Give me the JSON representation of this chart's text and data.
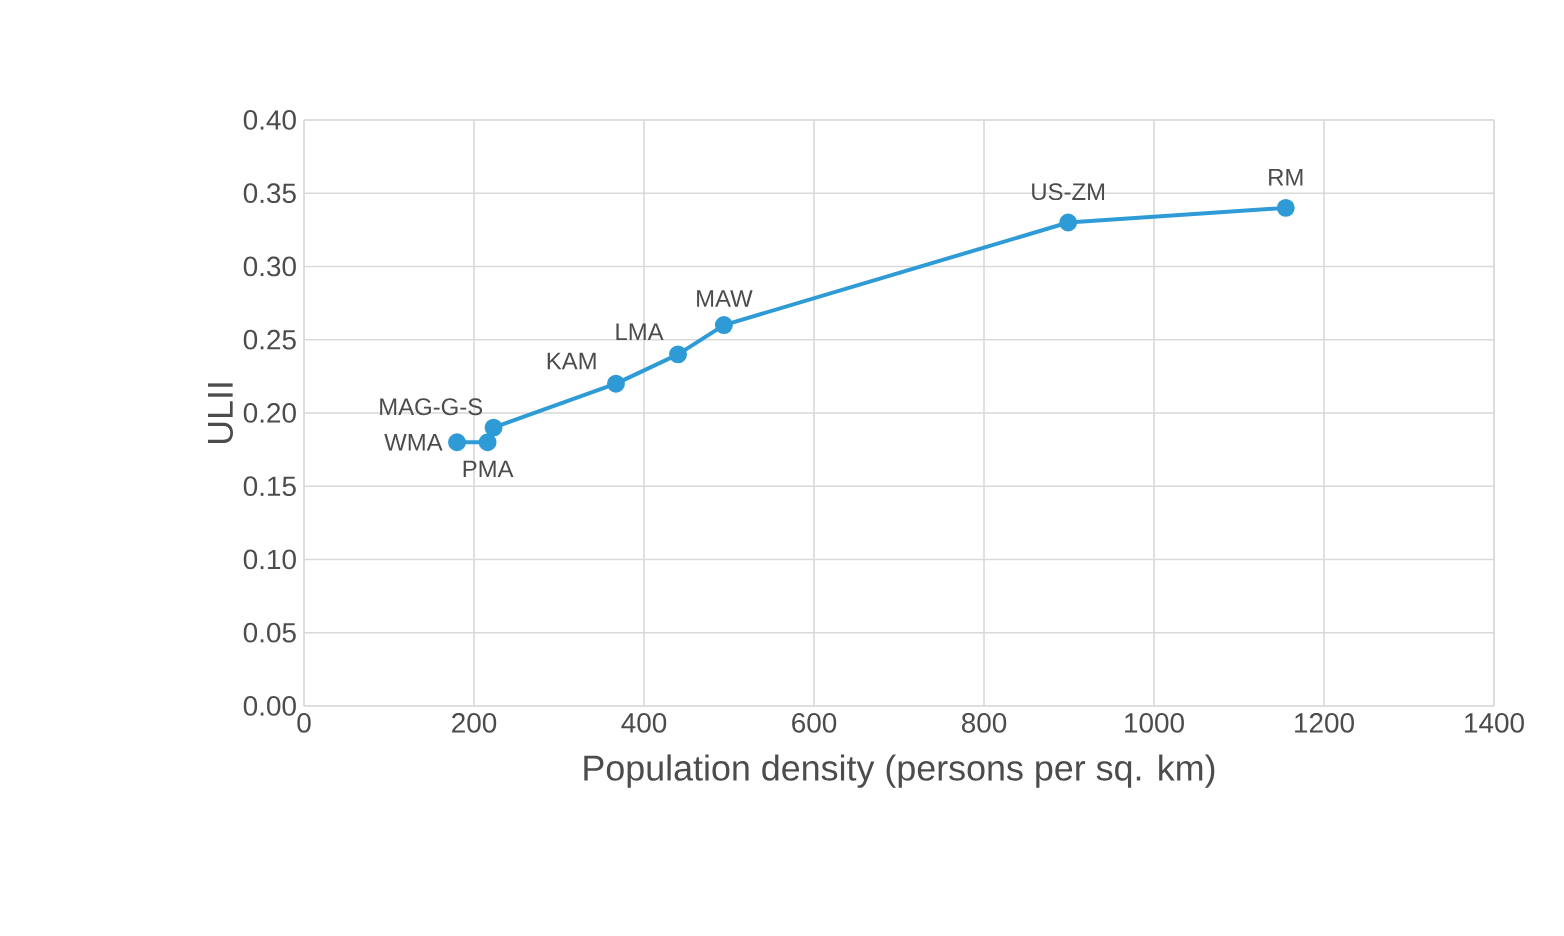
{
  "chart_data": {
    "type": "line",
    "xlabel": "Population density (persons per sq. km)",
    "ylabel": "ULII",
    "x": [
      180,
      216,
      223,
      367,
      440,
      494,
      899,
      1155
    ],
    "series": [
      {
        "color": "#2e9bd6",
        "values": [
          0.18,
          0.18,
          0.19,
          0.22,
          0.24,
          0.26,
          0.33,
          0.34
        ]
      }
    ],
    "xlim": [
      0,
      1400
    ],
    "xticks": [
      0,
      200,
      400,
      600,
      800,
      1000,
      1200,
      1400
    ],
    "ylim": [
      0,
      0.4
    ],
    "yticks": [
      {
        "value": 0,
        "label": "0.00"
      },
      {
        "value": 0.05,
        "label": "0.05"
      },
      {
        "value": 0.1,
        "label": "0.10"
      },
      {
        "value": 0.15,
        "label": "0.15"
      },
      {
        "value": 0.2,
        "label": "0.20"
      },
      {
        "value": 0.25,
        "label": "0.25"
      },
      {
        "value": 0.3,
        "label": "0.30"
      },
      {
        "value": 0.35,
        "label": "0.35"
      },
      {
        "value": 0.4,
        "label": "0.40"
      }
    ],
    "grid": true,
    "marker": "circle",
    "line_style": "solid",
    "annotations": [
      {
        "text": "WMA",
        "x": 180,
        "y": 0.18
      },
      {
        "text": "PMA",
        "x": 216,
        "y": 0.18
      },
      {
        "text": "MAG-G-S",
        "x": 223,
        "y": 0.19
      },
      {
        "text": "KAM",
        "x": 367,
        "y": 0.22
      },
      {
        "text": "LMA",
        "x": 440,
        "y": 0.24
      },
      {
        "text": "MAW",
        "x": 494,
        "y": 0.26
      },
      {
        "text": "US-ZM",
        "x": 899,
        "y": 0.33
      },
      {
        "text": "RM",
        "x": 1155,
        "y": 0.34
      }
    ]
  }
}
